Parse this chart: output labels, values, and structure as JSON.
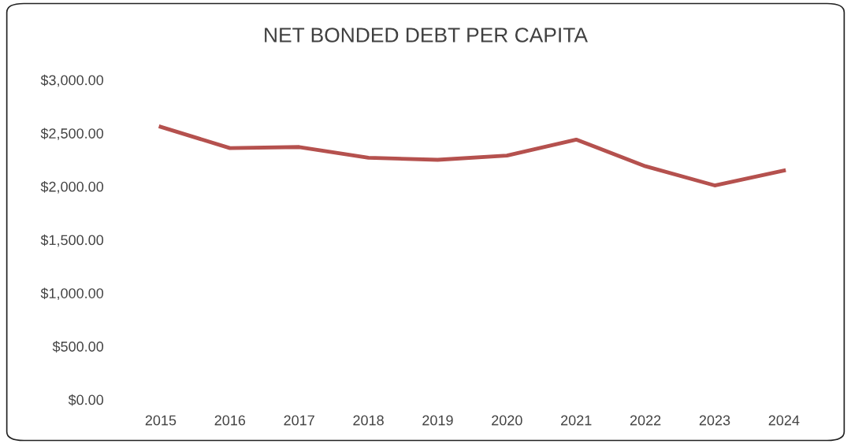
{
  "chart_data": {
    "type": "line",
    "title": "NET BONDED DEBT PER CAPITA",
    "categories": [
      "2015",
      "2016",
      "2017",
      "2018",
      "2019",
      "2020",
      "2021",
      "2022",
      "2023",
      "2024"
    ],
    "series": [
      {
        "color": "#b5514e",
        "values": [
          2560,
          2360,
          2370,
          2270,
          2250,
          2290,
          2440,
          2190,
          2010,
          2150
        ]
      }
    ],
    "ylim": [
      0,
      3000
    ],
    "yticks": [
      {
        "value": 0,
        "label": "$0.00"
      },
      {
        "value": 500,
        "label": "$500.00"
      },
      {
        "value": 1000,
        "label": "$1,000.00"
      },
      {
        "value": 1500,
        "label": "$1,500.00"
      },
      {
        "value": 2000,
        "label": "$2,000.00"
      },
      {
        "value": 2500,
        "label": "$2,500.00"
      },
      {
        "value": 3000,
        "label": "$3,000.00"
      }
    ],
    "grid": false,
    "legend": false,
    "marker": "none",
    "line_style": "solid"
  }
}
